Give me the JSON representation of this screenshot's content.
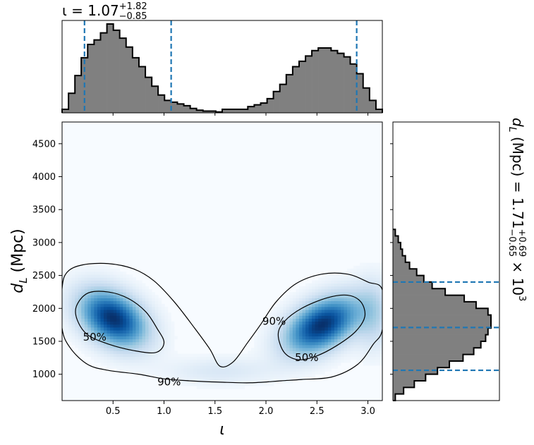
{
  "chart_data": [
    {
      "panel": "top-marginal",
      "type": "histogram",
      "title_main": "ι = 1.07",
      "title_sup": "+1.82",
      "title_sub": "−0.85",
      "xlim": [
        0.0,
        3.1416
      ],
      "bin_edges": [
        0.0,
        0.063,
        0.126,
        0.188,
        0.251,
        0.314,
        0.377,
        0.44,
        0.503,
        0.565,
        0.628,
        0.691,
        0.754,
        0.817,
        0.88,
        0.942,
        1.005,
        1.068,
        1.131,
        1.194,
        1.257,
        1.319,
        1.382,
        1.445,
        1.508,
        1.571,
        1.634,
        1.696,
        1.759,
        1.822,
        1.885,
        1.948,
        2.011,
        2.073,
        2.136,
        2.199,
        2.262,
        2.325,
        2.388,
        2.45,
        2.513,
        2.576,
        2.639,
        2.702,
        2.765,
        2.827,
        2.89,
        2.953,
        3.016,
        3.079,
        3.1416
      ],
      "counts": [
        4,
        22,
        42,
        62,
        77,
        82,
        90,
        100,
        93,
        84,
        74,
        62,
        52,
        40,
        30,
        20,
        14,
        12,
        10,
        8,
        5,
        3,
        2,
        2,
        1,
        4,
        4,
        4,
        4,
        7,
        9,
        11,
        16,
        24,
        32,
        43,
        52,
        58,
        64,
        70,
        73,
        73,
        70,
        67,
        63,
        55,
        44,
        28,
        14,
        4
      ],
      "bin_color": "#808080",
      "quantile_lines": [
        0.22,
        1.07,
        2.89
      ],
      "quantile_color": "#1f77b4"
    },
    {
      "panel": "main-2d",
      "type": "heatmap",
      "xlabel_main": "ι",
      "ylabel_main": "d",
      "ylabel_sub": "L",
      "ylabel_unit": " (Mpc)",
      "xlim": [
        0.0,
        3.1416
      ],
      "ylim": [
        600,
        4830
      ],
      "xticks": [
        0.5,
        1.0,
        1.5,
        2.0,
        2.5,
        3.0
      ],
      "xtick_labels": [
        "0.5",
        "1.0",
        "1.5",
        "2.0",
        "2.5",
        "3.0"
      ],
      "yticks": [
        1000,
        1500,
        2000,
        2500,
        3000,
        3500,
        4000,
        4500
      ],
      "ytick_labels": [
        "1000",
        "1500",
        "2000",
        "2500",
        "3000",
        "3500",
        "4000",
        "4500"
      ],
      "colormap": "Blues",
      "density_peaks": [
        {
          "x": 0.5,
          "y": 1850,
          "sx": 0.22,
          "sy": 290,
          "weight": 1.0,
          "rho": -0.35
        },
        {
          "x": 2.55,
          "y": 1750,
          "sx": 0.24,
          "sy": 290,
          "weight": 1.0,
          "rho": 0.45
        },
        {
          "x": 1.55,
          "y": 1050,
          "sx": 0.35,
          "sy": 140,
          "weight": 0.12,
          "rho": 0.0
        },
        {
          "x": 3.05,
          "y": 1900,
          "sx": 0.12,
          "sy": 350,
          "weight": 0.25,
          "rho": 0.0
        }
      ],
      "contours": [
        {
          "level": "90%",
          "label": "90%",
          "points": [
            [
              0.0,
              2300
            ],
            [
              0.05,
              2550
            ],
            [
              0.2,
              2660
            ],
            [
              0.45,
              2680
            ],
            [
              0.7,
              2600
            ],
            [
              0.9,
              2420
            ],
            [
              1.1,
              2100
            ],
            [
              1.3,
              1700
            ],
            [
              1.45,
              1380
            ],
            [
              1.55,
              1120
            ],
            [
              1.68,
              1190
            ],
            [
              1.82,
              1480
            ],
            [
              1.95,
              1760
            ],
            [
              2.1,
              2100
            ],
            [
              2.3,
              2380
            ],
            [
              2.55,
              2520
            ],
            [
              2.8,
              2520
            ],
            [
              3.0,
              2400
            ],
            [
              3.1416,
              2280
            ],
            [
              3.1416,
              1680
            ],
            [
              3.05,
              1450
            ],
            [
              2.9,
              1150
            ],
            [
              2.65,
              960
            ],
            [
              2.35,
              920
            ],
            [
              2.15,
              900
            ],
            [
              1.85,
              870
            ],
            [
              1.55,
              880
            ],
            [
              1.25,
              900
            ],
            [
              1.0,
              930
            ],
            [
              0.75,
              1000
            ],
            [
              0.45,
              1060
            ],
            [
              0.25,
              1150
            ],
            [
              0.08,
              1400
            ],
            [
              0.0,
              1700
            ]
          ],
          "label_positions": [
            {
              "x": 1.05,
              "y": 880
            },
            {
              "x": 2.08,
              "y": 1800
            }
          ]
        },
        {
          "level": "50%",
          "label": "50%",
          "points": [
            [
              0.14,
              2030
            ],
            [
              0.25,
              2230
            ],
            [
              0.45,
              2250
            ],
            [
              0.65,
              2150
            ],
            [
              0.82,
              1950
            ],
            [
              0.93,
              1700
            ],
            [
              1.0,
              1480
            ],
            [
              0.92,
              1330
            ],
            [
              0.7,
              1360
            ],
            [
              0.45,
              1460
            ],
            [
              0.25,
              1600
            ],
            [
              0.15,
              1820
            ]
          ],
          "label_positions": [
            {
              "x": 0.32,
              "y": 1560
            }
          ]
        },
        {
          "level": "50%",
          "label": "50%",
          "points": [
            [
              2.12,
              1600
            ],
            [
              2.18,
              1800
            ],
            [
              2.35,
              2000
            ],
            [
              2.6,
              2160
            ],
            [
              2.8,
              2200
            ],
            [
              2.93,
              2100
            ],
            [
              2.97,
              1880
            ],
            [
              2.88,
              1650
            ],
            [
              2.7,
              1440
            ],
            [
              2.5,
              1280
            ],
            [
              2.32,
              1220
            ],
            [
              2.18,
              1330
            ]
          ],
          "label_positions": [
            {
              "x": 2.4,
              "y": 1250
            }
          ]
        }
      ]
    },
    {
      "panel": "right-marginal",
      "type": "histogram",
      "orientation": "horizontal",
      "title_main": "d",
      "title_sub": "L",
      "title_rest": " (Mpc) = 1.71",
      "title_sup": "+0.69",
      "title_subscript": "−0.65",
      "title_times": " × 10",
      "title_exp": "3",
      "ylim": [
        600,
        4830
      ],
      "bin_edges": [
        600,
        700,
        800,
        900,
        1000,
        1100,
        1200,
        1300,
        1400,
        1500,
        1600,
        1700,
        1800,
        1900,
        2000,
        2100,
        2200,
        2300,
        2400,
        2500,
        2600,
        2700,
        2800,
        2900,
        3000,
        3100,
        3200
      ],
      "counts": [
        4,
        18,
        36,
        55,
        75,
        95,
        118,
        136,
        148,
        156,
        160,
        165,
        165,
        160,
        140,
        120,
        88,
        66,
        52,
        40,
        28,
        21,
        16,
        13,
        9,
        4
      ],
      "bin_color": "#808080",
      "quantile_lines": [
        1060,
        1710,
        2400
      ],
      "quantile_color": "#1f77b4"
    }
  ]
}
